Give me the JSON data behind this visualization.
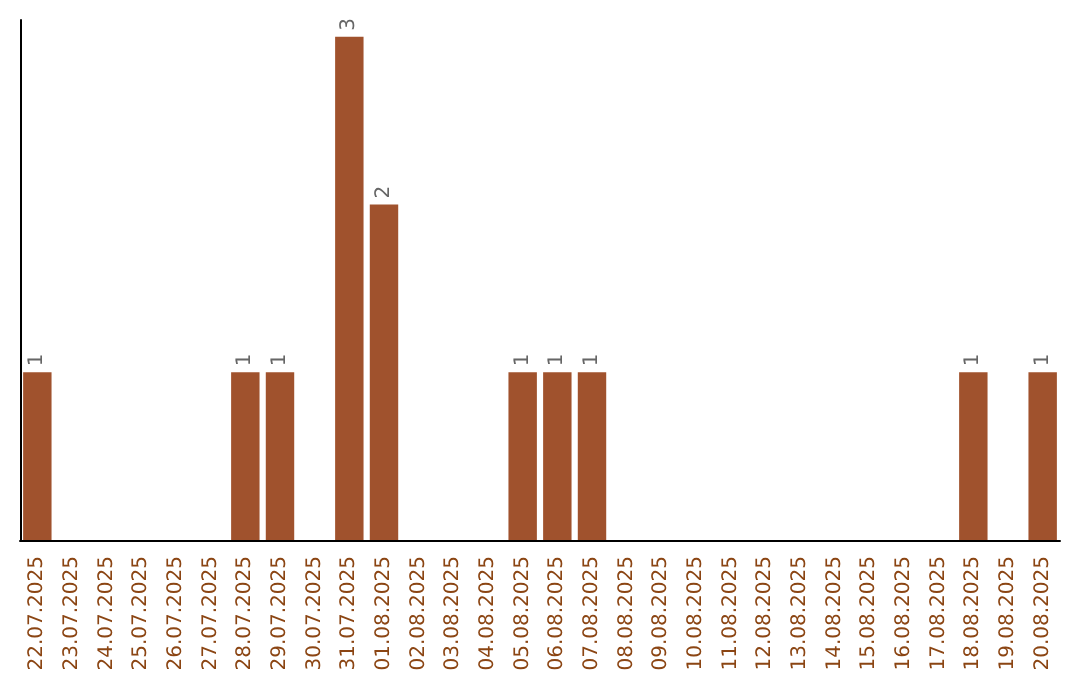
{
  "chart_data": {
    "type": "bar",
    "categories": [
      "22.07.2025",
      "23.07.2025",
      "24.07.2025",
      "25.07.2025",
      "26.07.2025",
      "27.07.2025",
      "28.07.2025",
      "29.07.2025",
      "30.07.2025",
      "31.07.2025",
      "01.08.2025",
      "02.08.2025",
      "03.08.2025",
      "04.08.2025",
      "05.08.2025",
      "06.08.2025",
      "07.08.2025",
      "08.08.2025",
      "09.08.2025",
      "10.08.2025",
      "11.08.2025",
      "12.08.2025",
      "13.08.2025",
      "14.08.2025",
      "15.08.2025",
      "16.08.2025",
      "17.08.2025",
      "18.08.2025",
      "19.08.2025",
      "20.08.2025"
    ],
    "values": [
      1,
      0,
      0,
      0,
      0,
      0,
      1,
      1,
      0,
      3,
      2,
      0,
      0,
      0,
      1,
      1,
      1,
      0,
      0,
      0,
      0,
      0,
      0,
      0,
      0,
      0,
      0,
      1,
      0,
      1
    ],
    "value_labels": [
      "1",
      null,
      null,
      null,
      null,
      null,
      "1",
      "1",
      null,
      "3",
      "2",
      null,
      null,
      null,
      "1",
      "1",
      "1",
      null,
      null,
      null,
      null,
      null,
      null,
      null,
      null,
      null,
      null,
      "1",
      null,
      "1"
    ],
    "color": "#a0522d",
    "ylim": [
      0,
      3.1
    ],
    "tick_labels": "x",
    "grid": false
  }
}
